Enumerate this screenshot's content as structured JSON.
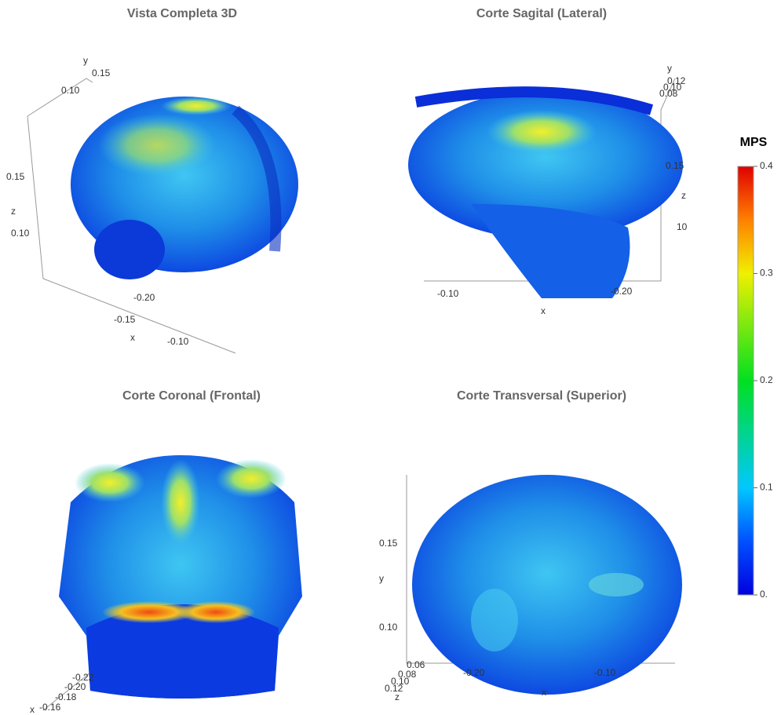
{
  "figure": {
    "panels": [
      {
        "title": "Vista Completa 3D",
        "ticks": [
          "0.10",
          "0.15",
          "y",
          "0.15",
          "z",
          "0.10",
          "-0.20",
          "-0.15",
          "x",
          "-0.10"
        ]
      },
      {
        "title": "Corte Sagital (Lateral)",
        "ticks": [
          "-0.10",
          "-0.20",
          "x",
          "y",
          "0.12",
          "0.10",
          "0.08",
          "0.15",
          "z",
          "10"
        ]
      },
      {
        "title": "Corte Coronal (Frontal)",
        "ticks": [
          "x",
          "-0.16",
          "-0.18",
          "-0.20",
          "-0.22"
        ]
      },
      {
        "title": "Corte Transversal (Superior)",
        "ticks": [
          "0.15",
          "y",
          "0.10",
          "-0.20",
          "-0.10",
          "x",
          "z",
          "0.12",
          "0.10",
          "0.08",
          "0.06"
        ]
      }
    ],
    "colorbar": {
      "title": "MPS",
      "lim": [
        0,
        0.4
      ],
      "ticks": [
        {
          "value": 0,
          "label": "0."
        },
        0.1,
        0.2,
        0.3,
        0.4
      ]
    }
  }
}
